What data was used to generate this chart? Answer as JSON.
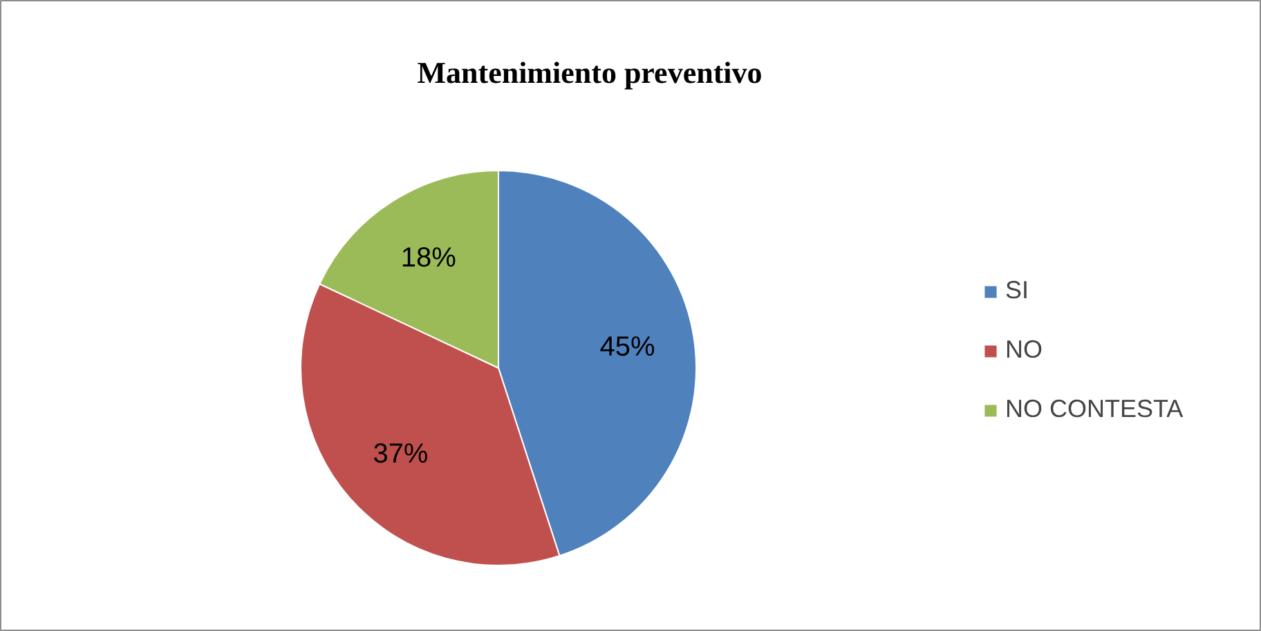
{
  "chart_data": {
    "type": "pie",
    "title": "Mantenimiento preventivo",
    "categories": [
      "SI",
      "NO",
      "NO CONTESTA"
    ],
    "values": [
      45,
      37,
      18
    ],
    "colors": [
      "#4f81bd",
      "#c0504d",
      "#9bbb59"
    ],
    "value_labels": [
      "45%",
      "37%",
      "18%"
    ],
    "legend": "right"
  }
}
